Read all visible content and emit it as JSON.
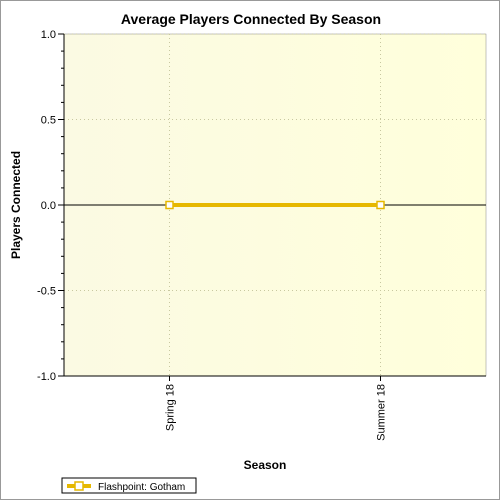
{
  "chart_data": {
    "type": "line",
    "title": "Average Players Connected By Season",
    "xlabel": "Season",
    "ylabel": "Players Connected",
    "categories": [
      "Spring 18",
      "Summer 18"
    ],
    "ylim": [
      -1.0,
      1.0
    ],
    "yticks": [
      "1.0",
      "0.5",
      "0.0",
      "-0.5",
      "-1.0"
    ],
    "grid": true,
    "legend_position": "bottom-left",
    "series": [
      {
        "name": "Flashpoint: Gotham",
        "values": [
          0.0,
          0.0
        ],
        "color": "#e6b800"
      }
    ]
  }
}
